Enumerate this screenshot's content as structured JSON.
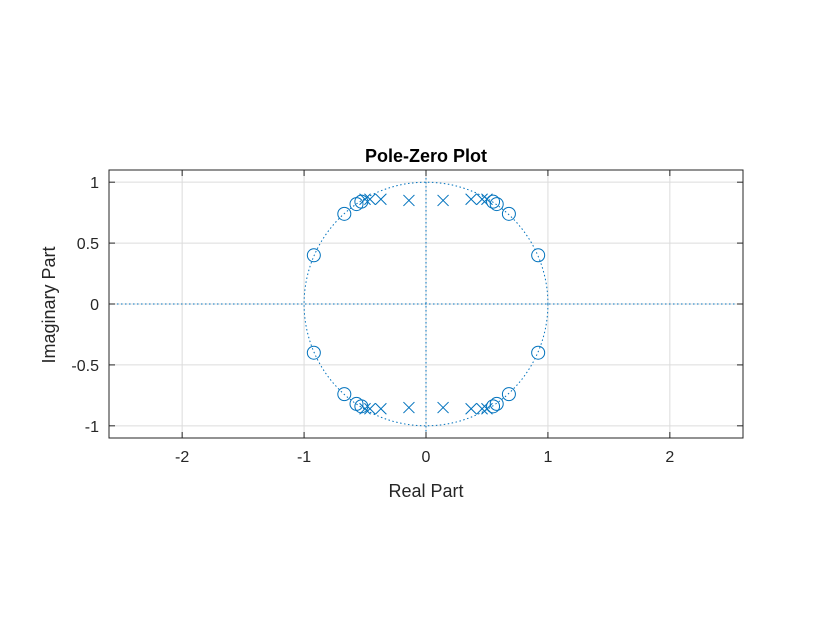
{
  "chart_data": {
    "type": "scatter",
    "title": "Pole-Zero Plot",
    "xlabel": "Real Part",
    "ylabel": "Imaginary Part",
    "xlim": [
      -2.6,
      2.6
    ],
    "ylim": [
      -1.1,
      1.1
    ],
    "xticks": [
      -2,
      -1,
      0,
      1,
      2
    ],
    "xtick_labels": [
      "-2",
      "-1",
      "0",
      "1",
      "2"
    ],
    "yticks": [
      -1,
      -0.5,
      0,
      0.5,
      1
    ],
    "ytick_labels": [
      "-1",
      "-0.5",
      "0",
      "0.5",
      "1"
    ],
    "grid": true,
    "unit_circle": true,
    "colors": {
      "marker": "#0072bd",
      "grid": "#dcdcdc",
      "axis": "#262626"
    },
    "zeros": [
      {
        "x": 0.92,
        "y": 0.4
      },
      {
        "x": 0.92,
        "y": -0.4
      },
      {
        "x": 0.68,
        "y": 0.74
      },
      {
        "x": 0.68,
        "y": -0.74
      },
      {
        "x": 0.58,
        "y": 0.82
      },
      {
        "x": 0.58,
        "y": -0.82
      },
      {
        "x": 0.55,
        "y": 0.84
      },
      {
        "x": 0.55,
        "y": -0.84
      },
      {
        "x": -0.92,
        "y": 0.4
      },
      {
        "x": -0.92,
        "y": -0.4
      },
      {
        "x": -0.67,
        "y": 0.74
      },
      {
        "x": -0.67,
        "y": -0.74
      },
      {
        "x": -0.57,
        "y": 0.82
      },
      {
        "x": -0.57,
        "y": -0.82
      },
      {
        "x": -0.53,
        "y": 0.84
      },
      {
        "x": -0.53,
        "y": -0.84
      }
    ],
    "poles": [
      {
        "x": 0.14,
        "y": 0.85
      },
      {
        "x": 0.14,
        "y": -0.85
      },
      {
        "x": 0.37,
        "y": 0.86
      },
      {
        "x": 0.37,
        "y": -0.86
      },
      {
        "x": 0.46,
        "y": 0.86
      },
      {
        "x": 0.46,
        "y": -0.86
      },
      {
        "x": 0.5,
        "y": 0.86
      },
      {
        "x": 0.5,
        "y": -0.86
      },
      {
        "x": -0.14,
        "y": 0.85
      },
      {
        "x": -0.14,
        "y": -0.85
      },
      {
        "x": -0.37,
        "y": 0.86
      },
      {
        "x": -0.37,
        "y": -0.86
      },
      {
        "x": -0.46,
        "y": 0.86
      },
      {
        "x": -0.46,
        "y": -0.86
      },
      {
        "x": -0.5,
        "y": 0.86
      },
      {
        "x": -0.5,
        "y": -0.86
      }
    ]
  }
}
